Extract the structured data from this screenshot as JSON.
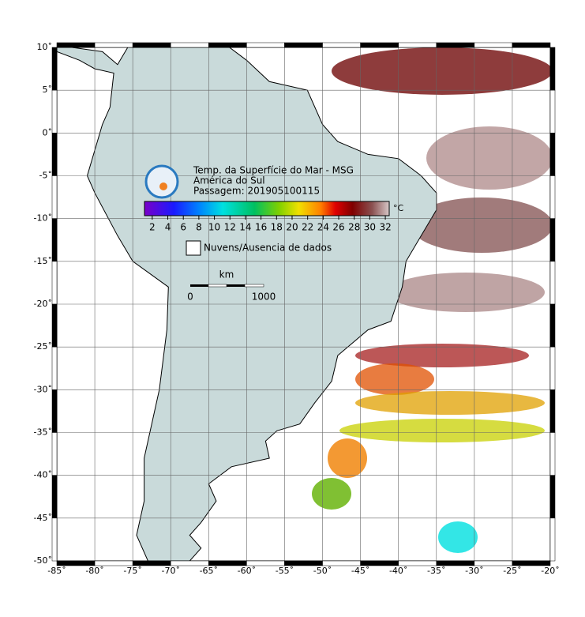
{
  "map": {
    "xlim": [
      -85,
      -20
    ],
    "ylim": [
      -50,
      10
    ],
    "lon_ticks": [
      {
        "value": -85,
        "label": "-85˚"
      },
      {
        "value": -80,
        "label": "-80˚"
      },
      {
        "value": -75,
        "label": "-75˚"
      },
      {
        "value": -70,
        "label": "-70˚"
      },
      {
        "value": -65,
        "label": "-65˚"
      },
      {
        "value": -60,
        "label": "-60˚"
      },
      {
        "value": -55,
        "label": "-55˚"
      },
      {
        "value": -50,
        "label": "-50˚"
      },
      {
        "value": -45,
        "label": "-45˚"
      },
      {
        "value": -40,
        "label": "-40˚"
      },
      {
        "value": -35,
        "label": "-35˚"
      },
      {
        "value": -30,
        "label": "-30˚"
      },
      {
        "value": -25,
        "label": "-25˚"
      },
      {
        "value": -20,
        "label": "-20˚"
      }
    ],
    "lat_ticks": [
      {
        "value": 10,
        "label": "10˚"
      },
      {
        "value": 5,
        "label": "5˚"
      },
      {
        "value": 0,
        "label": "0˚"
      },
      {
        "value": -5,
        "label": "-5˚"
      },
      {
        "value": -10,
        "label": "-10˚"
      },
      {
        "value": -15,
        "label": "-15˚"
      },
      {
        "value": -20,
        "label": "-20˚"
      },
      {
        "value": -25,
        "label": "-25˚"
      },
      {
        "value": -30,
        "label": "-30˚"
      },
      {
        "value": -35,
        "label": "-35˚"
      },
      {
        "value": -40,
        "label": "-40˚"
      },
      {
        "value": -45,
        "label": "-45˚"
      },
      {
        "value": -50,
        "label": "-50˚"
      }
    ]
  },
  "title_lines": [
    "Temp. da Superfície do Mar - MSG",
    "América do Sul",
    "Passagem: 201905100115"
  ],
  "colorbar": {
    "lim": [
      1,
      32.5
    ],
    "ticks": [
      2,
      4,
      6,
      8,
      10,
      12,
      14,
      16,
      18,
      20,
      22,
      24,
      26,
      28,
      30,
      32
    ],
    "unit": "°C"
  },
  "legend": {
    "label": "Nuvens/Ausencia de dados"
  },
  "scale_bar": {
    "unit": "km",
    "ticks": [
      0,
      1000
    ]
  }
}
